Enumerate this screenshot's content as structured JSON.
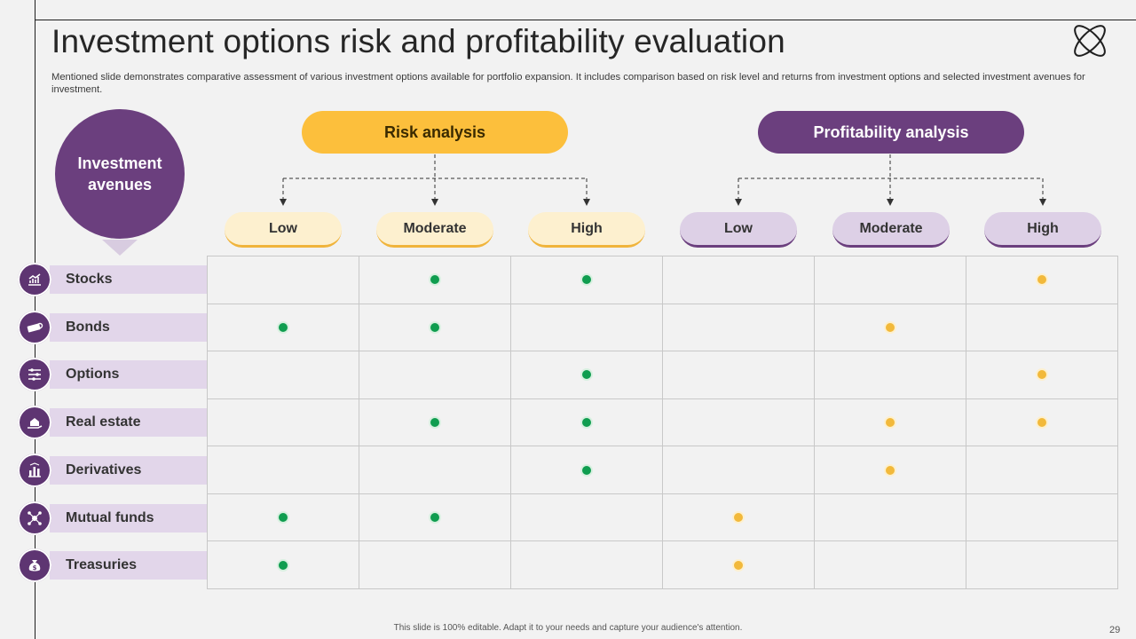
{
  "title": "Investment options risk and profitability evaluation",
  "subtitle": "Mentioned slide demonstrates comparative assessment of various investment options available for portfolio expansion. It includes comparison based on risk level and returns from investment options and selected investment avenues for investment.",
  "avenues_header": "Investment avenues",
  "risk_header": "Risk analysis",
  "profit_header": "Profitability analysis",
  "risk_levels": [
    "Low",
    "Moderate",
    "High"
  ],
  "profit_levels": [
    "Low",
    "Moderate",
    "High"
  ],
  "rows": [
    {
      "label": "Stocks",
      "icon": "chart-icon",
      "marks": [
        "",
        "g",
        "g",
        "",
        "",
        "y"
      ]
    },
    {
      "label": "Bonds",
      "icon": "bonds-icon",
      "marks": [
        "g",
        "g",
        "",
        "",
        "y",
        ""
      ]
    },
    {
      "label": "Options",
      "icon": "sliders-icon",
      "marks": [
        "",
        "",
        "g",
        "",
        "",
        "y"
      ]
    },
    {
      "label": "Real estate",
      "icon": "house-hand-icon",
      "marks": [
        "",
        "g",
        "g",
        "",
        "y",
        "y"
      ]
    },
    {
      "label": "Derivatives",
      "icon": "bar-chart-icon",
      "marks": [
        "",
        "",
        "g",
        "",
        "y",
        ""
      ]
    },
    {
      "label": "Mutual funds",
      "icon": "network-icon",
      "marks": [
        "g",
        "g",
        "",
        "y",
        "",
        ""
      ]
    },
    {
      "label": "Treasuries",
      "icon": "money-bag-icon",
      "marks": [
        "g",
        "",
        "",
        "y",
        "",
        ""
      ]
    }
  ],
  "colors": {
    "risk_mark": "#0f9d4f",
    "profit_mark": "#f2b93b",
    "accent": "#6b3f7e",
    "risk_accent": "#fcbf3c"
  },
  "footer": "This slide is 100% editable. Adapt it to your needs and capture your audience's attention.",
  "page_number": "29"
}
